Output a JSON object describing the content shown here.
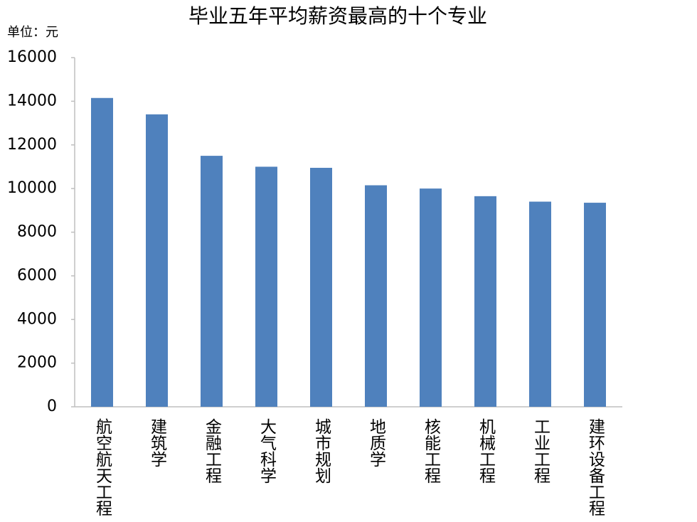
{
  "chart_data": {
    "type": "bar",
    "title": "毕业五年平均薪资最高的十个专业",
    "ylabel": "单位：元",
    "categories": [
      "航空航天工程",
      "建筑学",
      "金融工程",
      "大气科学",
      "城市规划",
      "地质学",
      "核能工程",
      "机械工程",
      "工业工程",
      "建环设备工程"
    ],
    "values": [
      14150,
      13400,
      11500,
      11000,
      10950,
      10150,
      10000,
      9650,
      9400,
      9350
    ],
    "color": "#4f81bd",
    "ylim": [
      0,
      16000
    ],
    "yticks": [
      0,
      2000,
      4000,
      6000,
      8000,
      10000,
      12000,
      14000,
      16000
    ],
    "grid": false
  }
}
